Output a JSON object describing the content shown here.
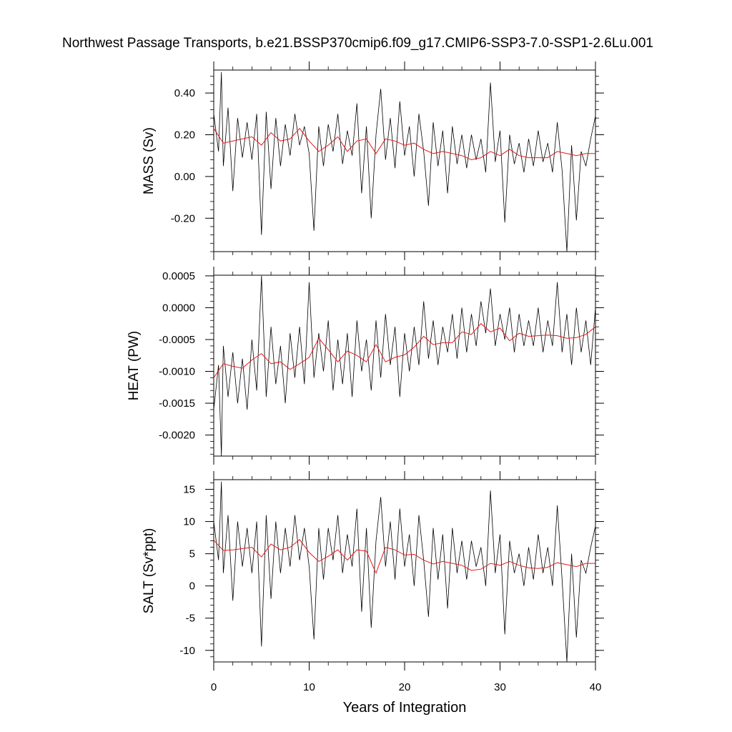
{
  "title": "Northwest Passage Transports, b.e21.BSSP370cmip6.f09_g17.CMIP6-SSP3-7.0-SSP1-2.6Lu.001",
  "xlabel": "Years of Integration",
  "colors": {
    "raw": "#000000",
    "smooth": "#e41a1c",
    "axis": "#000000"
  },
  "chart_data": [
    {
      "type": "line",
      "ylabel": "MASS (Sv)",
      "xlim": [
        0,
        40
      ],
      "ylim": [
        -0.36,
        0.51
      ],
      "xticks": [
        "0",
        "10",
        "20",
        "30",
        "40"
      ],
      "xtick_values": [
        0,
        10,
        20,
        30,
        40
      ],
      "yticks": [
        "0.40",
        "0.20",
        "0.00",
        "-0.20"
      ],
      "ytick_values": [
        0.4,
        0.2,
        0.0,
        -0.2
      ],
      "series": [
        {
          "x": [
            0,
            0.5,
            0.8,
            1,
            1.5,
            2,
            2.5,
            3,
            3.5,
            4,
            4.5,
            5,
            5.5,
            6,
            6.5,
            7,
            7.5,
            8,
            8.5,
            9,
            9.5,
            10,
            10.5,
            11,
            11.5,
            12,
            12.5,
            13,
            13.5,
            14,
            14.5,
            15,
            15.5,
            16,
            16.5,
            17,
            17.5,
            18,
            18.5,
            19,
            19.5,
            20,
            20.5,
            21,
            21.5,
            22,
            22.5,
            23,
            23.5,
            24,
            24.5,
            25,
            25.5,
            26,
            26.5,
            27,
            27.5,
            28,
            28.5,
            29,
            29.5,
            30,
            30.5,
            31,
            31.5,
            32,
            32.5,
            33,
            33.5,
            34,
            34.5,
            35,
            35.5,
            36,
            36.5,
            37,
            37.5,
            38,
            38.5,
            39,
            39.5,
            40
          ],
          "values": [
            0.3,
            0.12,
            0.5,
            0.05,
            0.33,
            -0.07,
            0.28,
            0.09,
            0.26,
            0.08,
            0.3,
            -0.28,
            0.31,
            -0.06,
            0.28,
            0.05,
            0.25,
            0.1,
            0.3,
            0.15,
            0.24,
            0.11,
            -0.26,
            0.24,
            0.05,
            0.25,
            0.12,
            0.3,
            0.06,
            0.22,
            0.1,
            0.35,
            -0.08,
            0.24,
            -0.2,
            0.2,
            0.42,
            0.08,
            0.28,
            0.04,
            0.36,
            0.1,
            0.24,
            0.0,
            0.3,
            0.12,
            -0.14,
            0.26,
            0.05,
            0.22,
            -0.08,
            0.24,
            0.06,
            0.2,
            0.04,
            0.2,
            0.08,
            0.18,
            0.02,
            0.45,
            0.07,
            0.22,
            -0.22,
            0.2,
            0.06,
            0.16,
            0.02,
            0.18,
            0.05,
            0.22,
            0.07,
            0.16,
            0.02,
            0.26,
            0.03,
            -0.36,
            0.15,
            -0.21,
            0.12,
            0.05,
            0.18,
            0.29
          ]
        },
        {
          "x": [
            0,
            1,
            2,
            3,
            4,
            5,
            6,
            7,
            8,
            9,
            10,
            11,
            12,
            13,
            14,
            15,
            16,
            17,
            18,
            19,
            20,
            21,
            22,
            23,
            24,
            25,
            26,
            27,
            28,
            29,
            30,
            31,
            32,
            33,
            34,
            35,
            36,
            37,
            38,
            39,
            40
          ],
          "values": [
            0.23,
            0.16,
            0.17,
            0.18,
            0.19,
            0.15,
            0.21,
            0.17,
            0.18,
            0.23,
            0.17,
            0.12,
            0.15,
            0.19,
            0.12,
            0.17,
            0.18,
            0.11,
            0.18,
            0.17,
            0.15,
            0.16,
            0.13,
            0.11,
            0.12,
            0.11,
            0.1,
            0.08,
            0.09,
            0.12,
            0.1,
            0.13,
            0.1,
            0.09,
            0.09,
            0.09,
            0.12,
            0.11,
            0.1,
            0.11,
            0.11
          ]
        }
      ]
    },
    {
      "type": "line",
      "ylabel": "HEAT (PW)",
      "xlim": [
        0,
        40
      ],
      "ylim": [
        -0.00233,
        0.00051
      ],
      "xticks": [
        "0",
        "10",
        "20",
        "30",
        "40"
      ],
      "xtick_values": [
        0,
        10,
        20,
        30,
        40
      ],
      "yticks": [
        "0.0005",
        "0.0000",
        "-0.0005",
        "-0.0010",
        "-0.0015",
        "-0.0020"
      ],
      "ytick_values": [
        0.0005,
        0.0,
        -0.0005,
        -0.001,
        -0.0015,
        -0.002
      ],
      "series": [
        {
          "x": [
            0,
            0.5,
            0.8,
            1,
            1.5,
            2,
            2.5,
            3,
            3.5,
            4,
            4.5,
            5,
            5.5,
            6,
            6.5,
            7,
            7.5,
            8,
            8.5,
            9,
            9.5,
            10,
            10.5,
            11,
            11.5,
            12,
            12.5,
            13,
            13.5,
            14,
            14.5,
            15,
            15.5,
            16,
            16.5,
            17,
            17.5,
            18,
            18.5,
            19,
            19.5,
            20,
            20.5,
            21,
            21.5,
            22,
            22.5,
            23,
            23.5,
            24,
            24.5,
            25,
            25.5,
            26,
            26.5,
            27,
            27.5,
            28,
            28.5,
            29,
            29.5,
            30,
            30.5,
            31,
            31.5,
            32,
            32.5,
            33,
            33.5,
            34,
            34.5,
            35,
            35.5,
            36,
            36.5,
            37,
            37.5,
            38,
            38.5,
            39,
            39.5,
            40
          ],
          "values": [
            -0.0016,
            -0.0009,
            -0.00233,
            -0.0006,
            -0.0014,
            -0.0007,
            -0.0015,
            -0.0008,
            -0.0016,
            -0.0005,
            -0.0013,
            0.0005,
            -0.0014,
            -0.0003,
            -0.0012,
            -0.0006,
            -0.0015,
            -0.0004,
            -0.0011,
            -0.0003,
            -0.0012,
            0.0004,
            -0.0011,
            -0.0004,
            -0.001,
            -0.0002,
            -0.0013,
            -0.0005,
            -0.0012,
            -0.0004,
            -0.0014,
            -0.0002,
            -0.001,
            -0.0005,
            -0.0013,
            -0.0002,
            -0.0011,
            -0.0001,
            -0.0009,
            -0.0003,
            -0.0014,
            -0.0004,
            -0.001,
            -0.0003,
            -0.0009,
            0.0001,
            -0.0008,
            -0.0002,
            -0.0009,
            -0.0003,
            -0.0007,
            -0.0001,
            -0.0008,
            0.0,
            -0.0007,
            -0.0001,
            -0.0006,
            0.0001,
            -0.0004,
            0.0003,
            -0.0006,
            -0.0001,
            -0.0005,
            0.0,
            -0.0007,
            -0.0001,
            -0.0006,
            -0.0002,
            -0.0006,
            0.0,
            -0.0007,
            -0.0002,
            -0.0006,
            0.0004,
            -0.0007,
            -0.0001,
            -0.0009,
            0.0,
            -0.0007,
            -0.0002,
            -0.0009,
            0.0
          ]
        },
        {
          "x": [
            0,
            1,
            2,
            3,
            4,
            5,
            6,
            7,
            8,
            9,
            10,
            11,
            12,
            13,
            14,
            15,
            16,
            17,
            18,
            19,
            20,
            21,
            22,
            23,
            24,
            25,
            26,
            27,
            28,
            29,
            30,
            31,
            32,
            33,
            34,
            35,
            36,
            37,
            38,
            39,
            40
          ],
          "values": [
            -0.0011,
            -0.00088,
            -0.00092,
            -0.00095,
            -0.00082,
            -0.00072,
            -0.00088,
            -0.00085,
            -0.00097,
            -0.00088,
            -0.00078,
            -0.00048,
            -0.00066,
            -0.00085,
            -0.00068,
            -0.00075,
            -0.00085,
            -0.00058,
            -0.00085,
            -0.00078,
            -0.00074,
            -0.00062,
            -0.00045,
            -0.00058,
            -0.00055,
            -0.00055,
            -0.00038,
            -0.00042,
            -0.00025,
            -0.00038,
            -0.00032,
            -0.00052,
            -0.0004,
            -0.00045,
            -0.00044,
            -0.00043,
            -0.00044,
            -0.00048,
            -0.00047,
            -0.00042,
            -0.0003
          ]
        }
      ]
    },
    {
      "type": "line",
      "ylabel": "SALT (Sv*ppt)",
      "xlim": [
        0,
        40
      ],
      "ylim": [
        -11.8,
        16.5
      ],
      "xticks": [
        "0",
        "10",
        "20",
        "30",
        "40"
      ],
      "xtick_values": [
        0,
        10,
        20,
        30,
        40
      ],
      "yticks": [
        "15",
        "10",
        "5",
        "0",
        "-5",
        "-10"
      ],
      "ytick_values": [
        15,
        10,
        5,
        0,
        -5,
        -10
      ],
      "series": [
        {
          "x": [
            0,
            0.5,
            0.8,
            1,
            1.5,
            2,
            2.5,
            3,
            3.5,
            4,
            4.5,
            5,
            5.5,
            6,
            6.5,
            7,
            7.5,
            8,
            8.5,
            9,
            9.5,
            10,
            10.5,
            11,
            11.5,
            12,
            12.5,
            13,
            13.5,
            14,
            14.5,
            15,
            15.5,
            16,
            16.5,
            17,
            17.5,
            18,
            18.5,
            19,
            19.5,
            20,
            20.5,
            21,
            21.5,
            22,
            22.5,
            23,
            23.5,
            24,
            24.5,
            25,
            25.5,
            26,
            26.5,
            27,
            27.5,
            28,
            28.5,
            29,
            29.5,
            30,
            30.5,
            31,
            31.5,
            32,
            32.5,
            33,
            33.5,
            34,
            34.5,
            35,
            35.5,
            36,
            36.5,
            37,
            37.5,
            38,
            38.5,
            39,
            39.5,
            40
          ],
          "values": [
            10,
            4,
            16.2,
            2,
            11,
            -2.3,
            10,
            3,
            9,
            2,
            10,
            -9.4,
            11,
            -2,
            10,
            2,
            9,
            3,
            11,
            4,
            9,
            3,
            -8.3,
            9,
            1,
            9,
            4,
            11,
            2,
            8,
            3,
            12,
            -4,
            9,
            -6.5,
            7,
            13.8,
            3,
            10,
            1,
            12,
            3,
            8,
            0,
            11,
            4,
            -4.8,
            9,
            1,
            8,
            -3.5,
            9,
            2,
            7,
            1,
            7,
            3,
            6,
            0,
            14.8,
            2,
            8,
            -7.5,
            7,
            2,
            5,
            0,
            6,
            1,
            8,
            2,
            6,
            0,
            12.5,
            1,
            -11.8,
            5,
            -8,
            4,
            2,
            6,
            9.3
          ]
        },
        {
          "x": [
            0,
            1,
            2,
            3,
            4,
            5,
            6,
            7,
            8,
            9,
            10,
            11,
            12,
            13,
            14,
            15,
            16,
            17,
            18,
            19,
            20,
            21,
            22,
            23,
            24,
            25,
            26,
            27,
            28,
            29,
            30,
            31,
            32,
            33,
            34,
            35,
            36,
            37,
            38,
            39,
            40
          ],
          "values": [
            7.1,
            5.5,
            5.6,
            5.8,
            6.0,
            4.5,
            6.5,
            5.6,
            6.0,
            7.2,
            5.2,
            3.8,
            4.6,
            5.6,
            4.0,
            5.6,
            5.4,
            2.0,
            6.0,
            5.6,
            4.8,
            4.9,
            4.0,
            3.4,
            3.8,
            3.5,
            3.2,
            2.4,
            2.6,
            3.5,
            3.2,
            3.8,
            3.2,
            2.8,
            2.7,
            2.9,
            3.6,
            3.3,
            3.0,
            3.5,
            3.5
          ]
        }
      ]
    }
  ]
}
